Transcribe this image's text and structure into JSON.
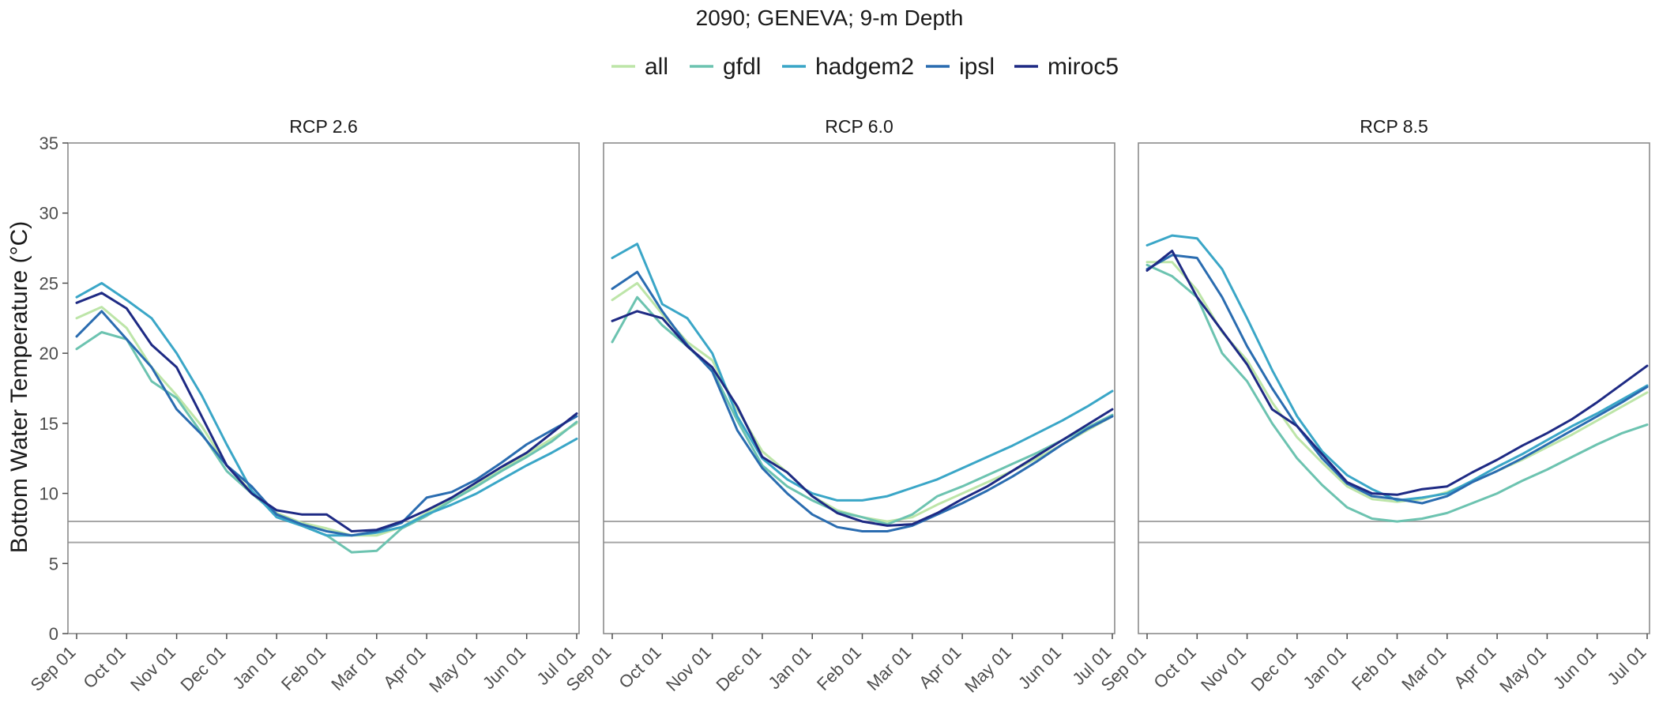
{
  "chart_data": {
    "type": "line",
    "title": "2090; GENEVA; 9-m Depth",
    "ylabel": "Bottom Water Temperature (°C)",
    "xlabel": "",
    "ylim": [
      0,
      35
    ],
    "yticks": [
      0,
      5,
      10,
      15,
      20,
      25,
      30,
      35
    ],
    "x_ticks": [
      "Sep 01",
      "Oct 01",
      "Nov 01",
      "Dec 01",
      "Jan 01",
      "Feb 01",
      "Mar 01",
      "Apr 01",
      "May 01",
      "Jun 01",
      "Jul 01"
    ],
    "legend_position": "top",
    "grid": false,
    "reference_lines": [
      6.5,
      8.0
    ],
    "series_names": [
      "all",
      "gfdl",
      "hadgem2",
      "ipsl",
      "miroc5"
    ],
    "series_colors": {
      "all": "#bde5a8",
      "gfdl": "#6cc3b0",
      "hadgem2": "#3aa6c7",
      "ipsl": "#2a6cb0",
      "miroc5": "#1e2a84"
    },
    "x": [
      "Sep 01",
      "Sep 15",
      "Oct 01",
      "Oct 15",
      "Nov 01",
      "Nov 15",
      "Dec 01",
      "Dec 15",
      "Jan 01",
      "Jan 15",
      "Feb 01",
      "Feb 15",
      "Mar 01",
      "Mar 15",
      "Apr 01",
      "Apr 15",
      "May 01",
      "May 15",
      "Jun 01",
      "Jun 15",
      "Jul 01"
    ],
    "panels": [
      {
        "name": "RCP 2.6",
        "series": [
          {
            "name": "all",
            "values": [
              22.5,
              23.3,
              21.8,
              19.0,
              17.0,
              14.8,
              12.0,
              10.1,
              8.6,
              7.9,
              7.5,
              7.0,
              7.0,
              7.6,
              8.6,
              9.6,
              10.6,
              11.7,
              12.8,
              13.9,
              15.0
            ]
          },
          {
            "name": "gfdl",
            "values": [
              20.3,
              21.5,
              21.0,
              18.0,
              16.8,
              14.3,
              11.6,
              10.0,
              8.5,
              7.7,
              7.0,
              5.8,
              5.9,
              7.5,
              8.4,
              9.5,
              10.5,
              11.6,
              12.6,
              13.7,
              15.1
            ]
          },
          {
            "name": "hadgem2",
            "values": [
              24.0,
              25.0,
              23.8,
              22.5,
              20.0,
              17.0,
              13.5,
              10.2,
              8.3,
              7.7,
              7.0,
              7.0,
              7.2,
              7.6,
              8.5,
              9.2,
              10.0,
              11.0,
              12.0,
              12.9,
              13.9
            ]
          },
          {
            "name": "ipsl",
            "values": [
              21.2,
              23.0,
              21.0,
              19.0,
              16.0,
              14.2,
              12.0,
              10.5,
              8.5,
              7.8,
              7.3,
              7.0,
              7.3,
              7.9,
              9.7,
              10.1,
              11.0,
              12.2,
              13.5,
              14.5,
              15.5
            ]
          },
          {
            "name": "miroc5",
            "values": [
              23.6,
              24.3,
              23.2,
              20.6,
              19.0,
              15.5,
              12.0,
              10.0,
              8.8,
              8.5,
              8.5,
              7.3,
              7.4,
              8.0,
              8.8,
              9.7,
              10.8,
              11.9,
              12.9,
              14.3,
              15.7
            ]
          }
        ]
      },
      {
        "name": "RCP 6.0",
        "series": [
          {
            "name": "all",
            "values": [
              23.8,
              25.0,
              22.8,
              20.8,
              19.5,
              16.0,
              13.0,
              11.5,
              9.8,
              8.8,
              8.3,
              8.0,
              8.3,
              9.2,
              10.0,
              10.8,
              11.6,
              12.5,
              13.5,
              14.5,
              15.5
            ]
          },
          {
            "name": "gfdl",
            "values": [
              20.8,
              24.0,
              22.0,
              20.5,
              18.8,
              15.2,
              12.0,
              10.5,
              9.5,
              8.7,
              8.3,
              7.8,
              8.5,
              9.8,
              10.5,
              11.3,
              12.1,
              12.9,
              13.8,
              14.7,
              15.6
            ]
          },
          {
            "name": "hadgem2",
            "values": [
              26.8,
              27.8,
              23.5,
              22.5,
              20.0,
              15.5,
              12.5,
              11.0,
              10.0,
              9.5,
              9.5,
              9.8,
              10.4,
              11.0,
              11.8,
              12.6,
              13.4,
              14.3,
              15.2,
              16.2,
              17.3
            ]
          },
          {
            "name": "ipsl",
            "values": [
              24.6,
              25.8,
              23.0,
              20.6,
              18.7,
              14.5,
              11.8,
              10.0,
              8.5,
              7.6,
              7.3,
              7.3,
              7.7,
              8.5,
              9.3,
              10.2,
              11.2,
              12.3,
              13.5,
              14.6,
              15.5
            ]
          },
          {
            "name": "miroc5",
            "values": [
              22.3,
              23.0,
              22.5,
              20.5,
              19.0,
              16.2,
              12.6,
              11.5,
              9.8,
              8.6,
              8.0,
              7.7,
              7.8,
              8.6,
              9.6,
              10.5,
              11.6,
              12.7,
              13.8,
              14.9,
              16.0
            ]
          }
        ]
      },
      {
        "name": "RCP 8.5",
        "series": [
          {
            "name": "all",
            "values": [
              26.5,
              26.5,
              24.5,
              21.5,
              19.5,
              16.5,
              14.0,
              12.2,
              10.5,
              9.6,
              9.4,
              9.6,
              10.1,
              10.8,
              11.6,
              12.4,
              13.3,
              14.2,
              15.2,
              16.2,
              17.2
            ]
          },
          {
            "name": "gfdl",
            "values": [
              26.3,
              25.5,
              24.0,
              20.0,
              18.0,
              15.0,
              12.5,
              10.6,
              9.0,
              8.2,
              8.0,
              8.2,
              8.6,
              9.3,
              10.0,
              10.9,
              11.7,
              12.6,
              13.5,
              14.3,
              14.9
            ]
          },
          {
            "name": "hadgem2",
            "values": [
              27.7,
              28.4,
              28.2,
              26.0,
              22.5,
              18.8,
              15.5,
              13.0,
              11.3,
              10.3,
              9.5,
              9.7,
              10.0,
              10.9,
              11.9,
              12.8,
              13.8,
              14.8,
              15.7,
              16.7,
              17.7
            ]
          },
          {
            "name": "ipsl",
            "values": [
              26.0,
              27.0,
              26.8,
              24.0,
              20.5,
              17.5,
              14.8,
              12.5,
              10.7,
              9.8,
              9.6,
              9.3,
              9.8,
              10.8,
              11.6,
              12.5,
              13.5,
              14.5,
              15.5,
              16.5,
              17.6
            ]
          },
          {
            "name": "miroc5",
            "values": [
              25.9,
              27.3,
              24.0,
              21.6,
              19.2,
              16.0,
              14.8,
              12.8,
              10.8,
              10.0,
              9.9,
              10.3,
              10.5,
              11.5,
              12.4,
              13.4,
              14.3,
              15.3,
              16.5,
              17.8,
              19.1
            ]
          }
        ]
      }
    ]
  }
}
